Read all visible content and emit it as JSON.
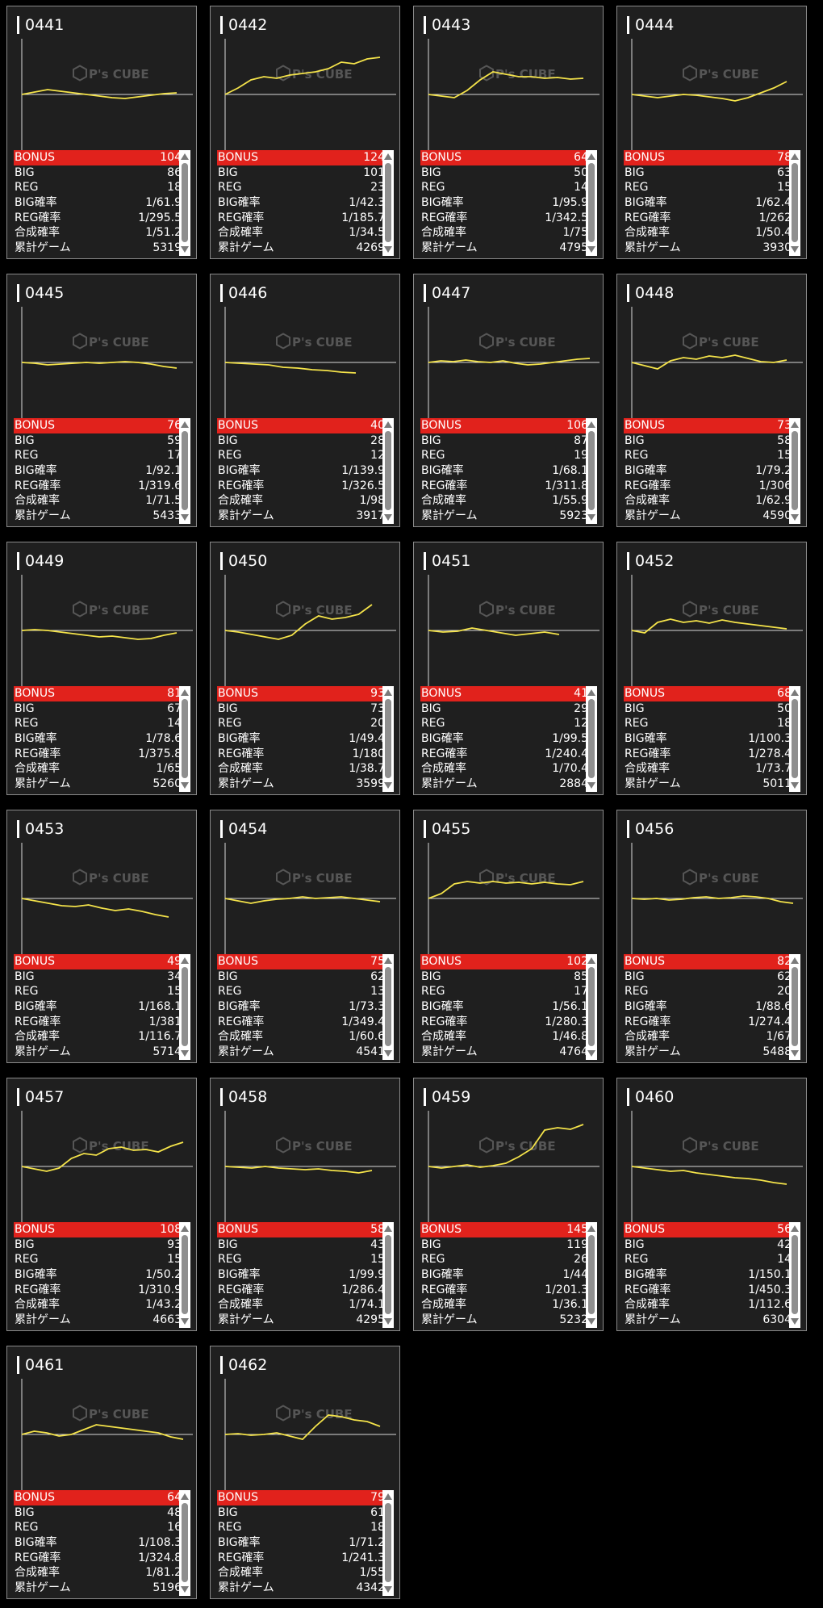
{
  "labels": {
    "bonus": "BONUS",
    "big": "BIG",
    "reg": "REG",
    "big_rate": "BIG確率",
    "reg_rate": "REG確率",
    "combined_rate": "合成確率",
    "total_games": "累計ゲーム"
  },
  "watermark": "P's CUBE",
  "colors": {
    "bonus_bar": "#e1221c",
    "graph_line": "#f4e34a",
    "card_bg": "#1f1f1f",
    "card_border": "#8a8a8a"
  },
  "machines": [
    {
      "id": "0441",
      "bonus": "104",
      "big": "86",
      "reg": "18",
      "big_rate": "1/61.9",
      "reg_rate": "1/295.5",
      "combined_rate": "1/51.2",
      "total_games": "5319",
      "trend": [
        0,
        3,
        6,
        4,
        2,
        0,
        -2,
        -4,
        -5,
        -3,
        -1,
        1,
        2
      ]
    },
    {
      "id": "0442",
      "bonus": "124",
      "big": "101",
      "reg": "23",
      "big_rate": "1/42.3",
      "reg_rate": "1/185.7",
      "combined_rate": "1/34.5",
      "total_games": "4269",
      "trend": [
        0,
        8,
        18,
        22,
        20,
        24,
        26,
        28,
        32,
        40,
        38,
        44,
        46
      ]
    },
    {
      "id": "0443",
      "bonus": "64",
      "big": "50",
      "reg": "14",
      "big_rate": "1/95.9",
      "reg_rate": "1/342.5",
      "combined_rate": "1/75",
      "total_games": "4795",
      "trend": [
        0,
        -2,
        -4,
        5,
        18,
        28,
        25,
        22,
        22,
        20,
        21,
        19,
        20
      ]
    },
    {
      "id": "0444",
      "bonus": "78",
      "big": "63",
      "reg": "15",
      "big_rate": "1/62.4",
      "reg_rate": "1/262",
      "combined_rate": "1/50.4",
      "total_games": "3930",
      "trend": [
        0,
        -2,
        -4,
        -2,
        0,
        -1,
        -3,
        -5,
        -8,
        -4,
        2,
        8,
        16
      ]
    },
    {
      "id": "0445",
      "bonus": "76",
      "big": "59",
      "reg": "17",
      "big_rate": "1/92.1",
      "reg_rate": "1/319.6",
      "combined_rate": "1/71.5",
      "total_games": "5433",
      "trend": [
        0,
        -1,
        -3,
        -2,
        -1,
        0,
        -1,
        0,
        1,
        0,
        -2,
        -5,
        -7
      ]
    },
    {
      "id": "0446",
      "bonus": "40",
      "big": "28",
      "reg": "12",
      "big_rate": "1/139.9",
      "reg_rate": "1/326.5",
      "combined_rate": "1/98",
      "total_games": "3917",
      "trend": [
        0,
        -1,
        -2,
        -3,
        -6,
        -7,
        -9,
        -10,
        -12,
        -13
      ]
    },
    {
      "id": "0447",
      "bonus": "106",
      "big": "87",
      "reg": "19",
      "big_rate": "1/68.1",
      "reg_rate": "1/311.8",
      "combined_rate": "1/55.9",
      "total_games": "5923",
      "trend": [
        0,
        2,
        1,
        3,
        1,
        0,
        2,
        -1,
        -3,
        -2,
        0,
        2,
        4,
        5
      ]
    },
    {
      "id": "0448",
      "bonus": "73",
      "big": "58",
      "reg": "15",
      "big_rate": "1/79.2",
      "reg_rate": "1/306",
      "combined_rate": "1/62.9",
      "total_games": "4590",
      "trend": [
        0,
        -4,
        -8,
        2,
        6,
        4,
        8,
        6,
        9,
        5,
        1,
        0,
        3
      ]
    },
    {
      "id": "0449",
      "bonus": "81",
      "big": "67",
      "reg": "14",
      "big_rate": "1/78.6",
      "reg_rate": "1/375.8",
      "combined_rate": "1/65",
      "total_games": "5260",
      "trend": [
        0,
        1,
        0,
        -2,
        -4,
        -6,
        -8,
        -7,
        -9,
        -11,
        -10,
        -6,
        -3
      ]
    },
    {
      "id": "0450",
      "bonus": "93",
      "big": "73",
      "reg": "20",
      "big_rate": "1/49.4",
      "reg_rate": "1/180",
      "combined_rate": "1/38.7",
      "total_games": "3599",
      "trend": [
        0,
        -2,
        -5,
        -8,
        -11,
        -6,
        8,
        18,
        14,
        16,
        20,
        32
      ]
    },
    {
      "id": "0451",
      "bonus": "41",
      "big": "29",
      "reg": "12",
      "big_rate": "1/99.5",
      "reg_rate": "1/240.4",
      "combined_rate": "1/70.4",
      "total_games": "2884",
      "trend": [
        0,
        -2,
        -1,
        3,
        0,
        -3,
        -6,
        -4,
        -2,
        -5
      ]
    },
    {
      "id": "0452",
      "bonus": "68",
      "big": "50",
      "reg": "18",
      "big_rate": "1/100.3",
      "reg_rate": "1/278.4",
      "combined_rate": "1/73.7",
      "total_games": "5011",
      "trend": [
        0,
        -3,
        10,
        14,
        10,
        12,
        9,
        13,
        10,
        8,
        6,
        4,
        2
      ]
    },
    {
      "id": "0453",
      "bonus": "49",
      "big": "34",
      "reg": "15",
      "big_rate": "1/168.1",
      "reg_rate": "1/381",
      "combined_rate": "1/116.7",
      "total_games": "5714",
      "trend": [
        0,
        -3,
        -6,
        -9,
        -10,
        -8,
        -12,
        -15,
        -13,
        -16,
        -20,
        -23
      ]
    },
    {
      "id": "0454",
      "bonus": "75",
      "big": "62",
      "reg": "13",
      "big_rate": "1/73.3",
      "reg_rate": "1/349.4",
      "combined_rate": "1/60.6",
      "total_games": "4541",
      "trend": [
        0,
        -3,
        -6,
        -3,
        -1,
        0,
        2,
        0,
        1,
        2,
        0,
        -2,
        -4
      ]
    },
    {
      "id": "0455",
      "bonus": "102",
      "big": "85",
      "reg": "17",
      "big_rate": "1/56.1",
      "reg_rate": "1/280.3",
      "combined_rate": "1/46.8",
      "total_games": "4764",
      "trend": [
        0,
        6,
        18,
        21,
        19,
        21,
        19,
        20,
        18,
        20,
        18,
        17,
        21
      ]
    },
    {
      "id": "0456",
      "bonus": "82",
      "big": "62",
      "reg": "20",
      "big_rate": "1/88.6",
      "reg_rate": "1/274.4",
      "combined_rate": "1/67",
      "total_games": "5488",
      "trend": [
        0,
        -1,
        0,
        -2,
        -1,
        1,
        2,
        0,
        1,
        3,
        2,
        0,
        -4,
        -6
      ]
    },
    {
      "id": "0457",
      "bonus": "108",
      "big": "93",
      "reg": "15",
      "big_rate": "1/50.2",
      "reg_rate": "1/310.9",
      "combined_rate": "1/43.2",
      "total_games": "4663",
      "trend": [
        0,
        -3,
        -6,
        -2,
        10,
        16,
        14,
        22,
        24,
        20,
        21,
        18,
        25,
        30
      ]
    },
    {
      "id": "0458",
      "bonus": "58",
      "big": "43",
      "reg": "15",
      "big_rate": "1/99.9",
      "reg_rate": "1/286.4",
      "combined_rate": "1/74.1",
      "total_games": "4295",
      "trend": [
        0,
        -1,
        -2,
        0,
        -2,
        -3,
        -4,
        -3,
        -5,
        -6,
        -8,
        -5
      ]
    },
    {
      "id": "0459",
      "bonus": "145",
      "big": "119",
      "reg": "26",
      "big_rate": "1/44",
      "reg_rate": "1/201.3",
      "combined_rate": "1/36.1",
      "total_games": "5232",
      "trend": [
        0,
        -2,
        0,
        2,
        -1,
        1,
        4,
        12,
        22,
        45,
        48,
        46,
        52
      ]
    },
    {
      "id": "0460",
      "bonus": "56",
      "big": "42",
      "reg": "14",
      "big_rate": "1/150.1",
      "reg_rate": "1/450.3",
      "combined_rate": "1/112.6",
      "total_games": "6304",
      "trend": [
        0,
        -2,
        -4,
        -6,
        -5,
        -8,
        -10,
        -12,
        -14,
        -15,
        -17,
        -20,
        -22
      ]
    },
    {
      "id": "0461",
      "bonus": "64",
      "big": "48",
      "reg": "16",
      "big_rate": "1/108.3",
      "reg_rate": "1/324.8",
      "combined_rate": "1/81.2",
      "total_games": "5196",
      "trend": [
        0,
        4,
        2,
        -2,
        0,
        6,
        12,
        10,
        8,
        6,
        4,
        2,
        -3,
        -6
      ]
    },
    {
      "id": "0462",
      "bonus": "79",
      "big": "61",
      "reg": "18",
      "big_rate": "1/71.2",
      "reg_rate": "1/241.3",
      "combined_rate": "1/55",
      "total_games": "4342",
      "trend": [
        0,
        1,
        -1,
        0,
        2,
        -2,
        -6,
        10,
        24,
        22,
        18,
        16,
        10
      ]
    }
  ]
}
